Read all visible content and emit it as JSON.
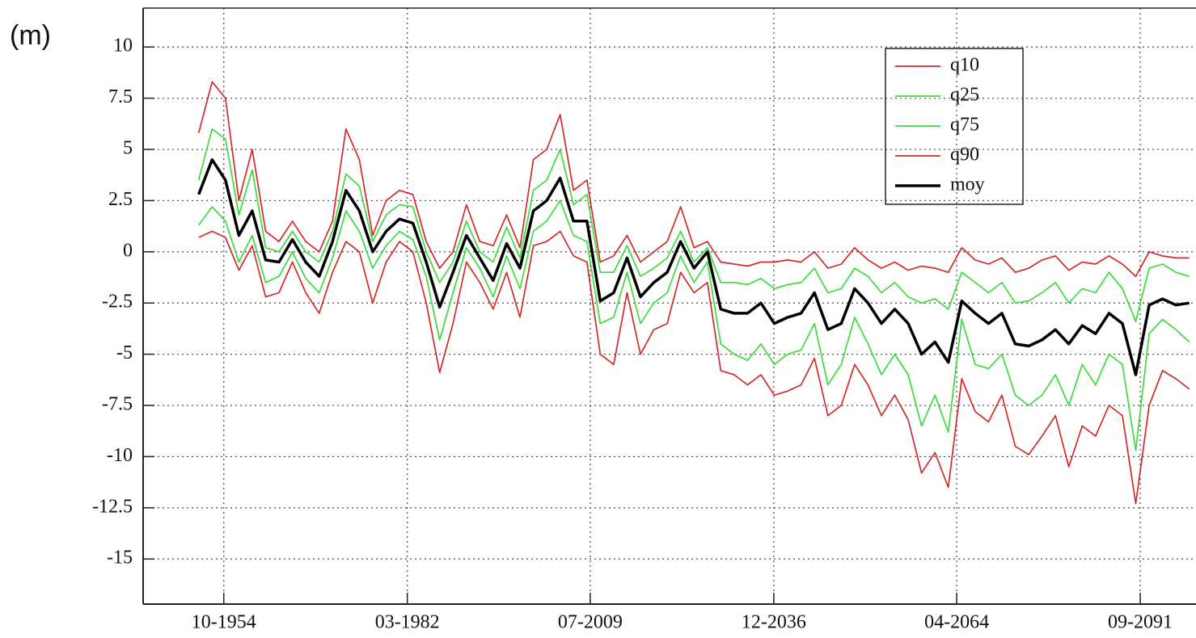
{
  "chart_data": {
    "type": "line",
    "y_label": "(m)",
    "x": [
      1951,
      1953,
      1955,
      1957,
      1959,
      1961,
      1963,
      1965,
      1967,
      1969,
      1971,
      1973,
      1975,
      1977,
      1979,
      1981,
      1983,
      1985,
      1987,
      1989,
      1991,
      1993,
      1995,
      1997,
      1999,
      2001,
      2003,
      2005,
      2007,
      2009,
      2011,
      2013,
      2015,
      2017,
      2019,
      2021,
      2023,
      2025,
      2027,
      2029,
      2031,
      2033,
      2035,
      2037,
      2039,
      2041,
      2043,
      2045,
      2047,
      2049,
      2051,
      2053,
      2055,
      2057,
      2059,
      2061,
      2063,
      2065,
      2067,
      2069,
      2071,
      2073,
      2075,
      2077,
      2079,
      2081,
      2083,
      2085,
      2087,
      2089,
      2091,
      2093,
      2095,
      2097,
      2099
    ],
    "series": [
      {
        "name": "q10",
        "color": "#d42a2a",
        "values": [
          0.7,
          1.0,
          0.7,
          -0.9,
          0.3,
          -2.2,
          -2.0,
          -0.5,
          -2.0,
          -3.0,
          -1.0,
          0.5,
          0.0,
          -2.5,
          -0.5,
          0.5,
          0.0,
          -2.5,
          -5.9,
          -3.5,
          -0.5,
          -1.5,
          -2.8,
          -1.0,
          -3.2,
          0.3,
          0.5,
          1.0,
          -0.2,
          -0.5,
          -5.0,
          -5.5,
          -2.0,
          -5.0,
          -3.8,
          -3.5,
          -1.0,
          -2.0,
          -1.5,
          -5.8,
          -6.0,
          -6.5,
          -6.0,
          -7.0,
          -6.8,
          -6.5,
          -5.2,
          -8.0,
          -7.5,
          -5.5,
          -6.5,
          -8.0,
          -7.0,
          -8.2,
          -10.8,
          -9.8,
          -11.5,
          -6.2,
          -7.8,
          -8.3,
          -7.0,
          -9.5,
          -9.9,
          -9.0,
          -8.0,
          -10.5,
          -8.5,
          -9.0,
          -7.5,
          -8.0,
          -12.3,
          -7.5,
          -5.8,
          -6.2,
          -6.7
        ]
      },
      {
        "name": "q25",
        "color": "#3ddc3d",
        "values": [
          1.3,
          2.2,
          1.5,
          -0.5,
          0.8,
          -1.5,
          -1.2,
          0.0,
          -1.3,
          -2.0,
          -0.3,
          2.0,
          1.0,
          -0.8,
          0.3,
          1.0,
          0.6,
          -1.2,
          -4.3,
          -2.0,
          0.2,
          -0.8,
          -2.2,
          -0.2,
          -1.8,
          1.0,
          1.5,
          2.5,
          0.8,
          0.5,
          -3.5,
          -3.2,
          -1.0,
          -3.5,
          -2.5,
          -2.0,
          -0.2,
          -1.5,
          -0.5,
          -4.5,
          -5.0,
          -5.3,
          -4.5,
          -5.5,
          -5.0,
          -4.8,
          -3.5,
          -6.5,
          -5.5,
          -3.2,
          -4.5,
          -6.0,
          -5.0,
          -6.0,
          -8.5,
          -7.0,
          -8.8,
          -3.3,
          -5.5,
          -5.7,
          -5.0,
          -7.0,
          -7.5,
          -7.0,
          -6.0,
          -7.5,
          -5.5,
          -6.5,
          -5.0,
          -5.5,
          -9.7,
          -4.0,
          -3.3,
          -3.8,
          -4.4
        ]
      },
      {
        "name": "q75",
        "color": "#3ddc3d",
        "values": [
          3.5,
          6.0,
          5.5,
          1.8,
          4.0,
          0.2,
          0.0,
          1.0,
          0.0,
          -0.5,
          1.0,
          3.8,
          3.2,
          0.5,
          1.8,
          2.3,
          2.2,
          0.0,
          -1.5,
          -0.5,
          1.5,
          0.0,
          -0.5,
          1.2,
          -0.3,
          3.0,
          3.5,
          5.0,
          2.3,
          2.8,
          -1.0,
          -1.0,
          0.3,
          -1.2,
          -0.8,
          -0.3,
          1.0,
          -0.5,
          0.2,
          -1.5,
          -1.5,
          -1.6,
          -1.3,
          -1.8,
          -1.6,
          -1.5,
          -0.8,
          -2.0,
          -1.8,
          -0.8,
          -1.2,
          -2.0,
          -1.5,
          -2.2,
          -2.5,
          -2.3,
          -2.8,
          -1.0,
          -1.5,
          -2.0,
          -1.5,
          -2.5,
          -2.4,
          -2.0,
          -1.5,
          -2.5,
          -1.8,
          -2.0,
          -1.0,
          -1.8,
          -3.4,
          -0.8,
          -0.6,
          -1.0,
          -1.2
        ]
      },
      {
        "name": "q90",
        "color": "#d42a2a",
        "values": [
          5.8,
          8.3,
          7.5,
          2.5,
          5.0,
          1.0,
          0.5,
          1.5,
          0.5,
          0.0,
          1.5,
          6.0,
          4.5,
          0.8,
          2.5,
          3.0,
          2.8,
          0.5,
          -0.8,
          0.0,
          2.3,
          0.5,
          0.3,
          1.8,
          0.2,
          4.5,
          5.0,
          6.7,
          3.0,
          3.5,
          -0.5,
          -0.2,
          0.8,
          -0.5,
          0.0,
          0.5,
          2.2,
          0.2,
          0.5,
          -0.5,
          -0.6,
          -0.7,
          -0.5,
          -0.5,
          -0.4,
          -0.5,
          0.0,
          -0.8,
          -0.6,
          0.2,
          -0.4,
          -0.8,
          -0.5,
          -0.9,
          -0.7,
          -0.8,
          -1.0,
          0.2,
          -0.4,
          -0.6,
          -0.3,
          -1.0,
          -0.8,
          -0.4,
          -0.2,
          -0.9,
          -0.5,
          -0.6,
          -0.2,
          -0.6,
          -1.2,
          0.0,
          -0.2,
          -0.3,
          -0.3
        ]
      },
      {
        "name": "moy",
        "color": "#000000",
        "values": [
          2.8,
          4.5,
          3.5,
          0.8,
          2.0,
          -0.4,
          -0.5,
          0.6,
          -0.5,
          -1.2,
          0.5,
          3.0,
          2.0,
          0.0,
          1.0,
          1.6,
          1.4,
          -0.5,
          -2.7,
          -1.0,
          0.8,
          -0.3,
          -1.4,
          0.4,
          -0.8,
          2.0,
          2.5,
          3.6,
          1.5,
          1.5,
          -2.4,
          -2.0,
          -0.3,
          -2.2,
          -1.5,
          -1.0,
          0.5,
          -0.8,
          0.0,
          -2.8,
          -3.0,
          -3.0,
          -2.5,
          -3.5,
          -3.2,
          -3.0,
          -2.0,
          -3.8,
          -3.5,
          -1.8,
          -2.5,
          -3.5,
          -2.8,
          -3.5,
          -5.0,
          -4.4,
          -5.4,
          -2.4,
          -3.0,
          -3.5,
          -3.0,
          -4.5,
          -4.6,
          -4.3,
          -3.8,
          -4.5,
          -3.6,
          -4.0,
          -3.0,
          -3.5,
          -6.0,
          -2.6,
          -2.3,
          -2.6,
          -2.5
        ]
      }
    ],
    "xlim": [
      1942.7,
      2100
    ],
    "xticks": [
      {
        "value": 1954.75,
        "label": "10-1954"
      },
      {
        "value": 1982.17,
        "label": "03-1982"
      },
      {
        "value": 2009.5,
        "label": "07-2009"
      },
      {
        "value": 2036.92,
        "label": "12-2036"
      },
      {
        "value": 2064.25,
        "label": "04-2064"
      },
      {
        "value": 2091.67,
        "label": "09-2091"
      }
    ],
    "ylim": [
      -17.2,
      11.9
    ],
    "yticks": [
      10,
      7.5,
      5,
      2.5,
      0,
      -2.5,
      -5,
      -7.5,
      -10,
      -12.5,
      -15
    ],
    "grid": true,
    "legend": "upper right"
  }
}
